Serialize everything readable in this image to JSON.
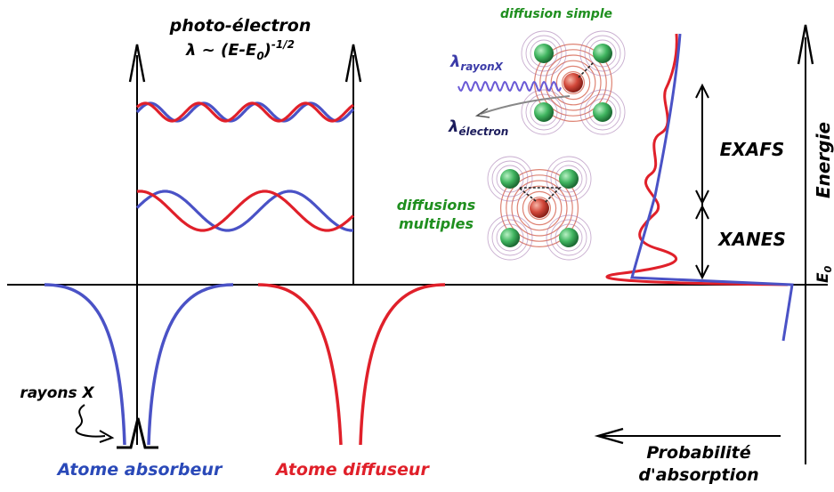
{
  "title": {
    "line1": "photo-électron",
    "lambda_prefix": "λ ~ (E-E",
    "lambda_sub": "0",
    "lambda_suffix": ")",
    "lambda_sup": "-1/2"
  },
  "labels": {
    "diffusion_simple": "diffusion simple",
    "diffusions_multiples_1": "diffusions",
    "diffusions_multiples_2": "multiples",
    "lambda_rayonX_sym": "λ",
    "lambda_rayonX_sub": "rayonX",
    "lambda_electron_sym": "λ",
    "lambda_electron_sub": "électron",
    "exafs": "EXAFS",
    "xanes": "XANES",
    "energie": "Energie",
    "e0_sym": "E",
    "e0_sub": "0",
    "rayons_x": "rayons X",
    "atome_absorbeur": "Atome absorbeur",
    "atome_diffuseur": "Atome diffuseur",
    "probabilite_1": "Probabilité",
    "probabilite_2": "d'absorption"
  },
  "colors": {
    "blue": "#4a52c6",
    "red": "#e0202a",
    "green": "#1f8f1f",
    "navy": "#1c1c5c",
    "black": "#000000",
    "atom_green": "#3fb45f",
    "atom_red": "#d2483a",
    "shell": "#d86d5a"
  }
}
